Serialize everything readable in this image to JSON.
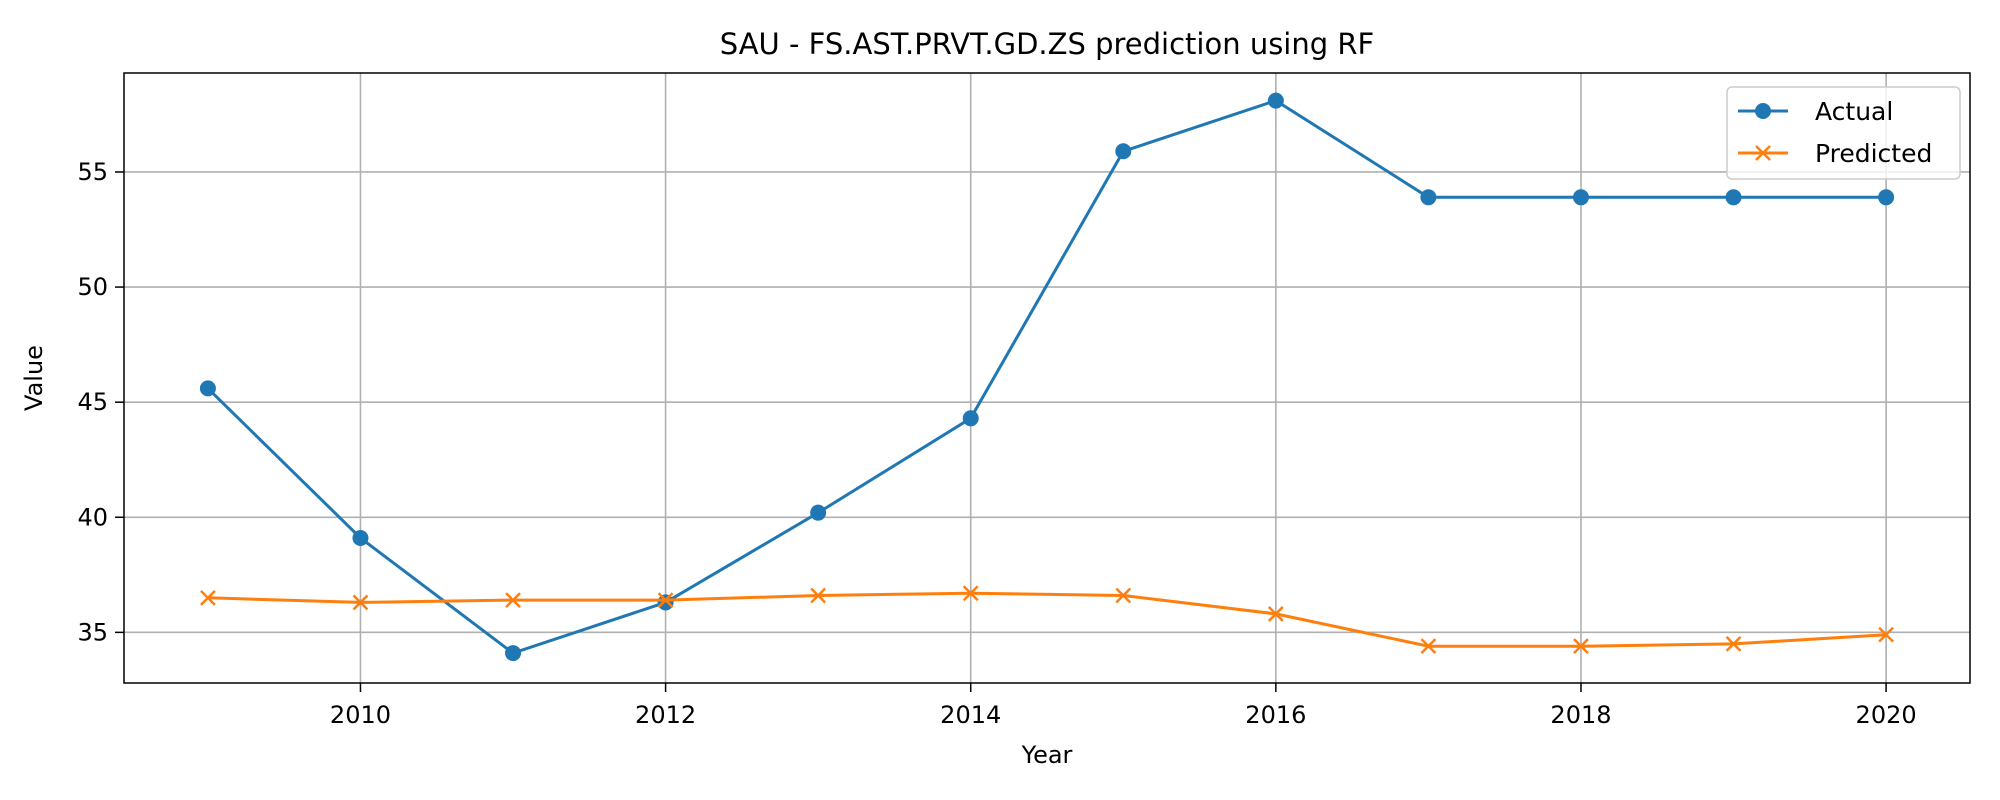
{
  "chart_data": {
    "type": "line",
    "title": "SAU - FS.AST.PRVT.GD.ZS prediction using RF",
    "xlabel": "Year",
    "ylabel": "Value",
    "xlim": [
      2008.45,
      2020.55
    ],
    "ylim": [
      32.8,
      59.3
    ],
    "xticks": [
      2010,
      2012,
      2014,
      2016,
      2018,
      2020
    ],
    "yticks": [
      35,
      40,
      45,
      50,
      55
    ],
    "grid": true,
    "legend_position": "top-right",
    "x": [
      2009,
      2010,
      2011,
      2012,
      2013,
      2014,
      2015,
      2016,
      2017,
      2018,
      2019,
      2020
    ],
    "series": [
      {
        "name": "Actual",
        "color": "#1f77b4",
        "marker": "circle",
        "values": [
          45.6,
          39.1,
          34.1,
          36.3,
          40.2,
          44.3,
          55.9,
          58.1,
          53.9,
          53.9,
          53.9,
          53.9
        ]
      },
      {
        "name": "Predicted",
        "color": "#ff7f0e",
        "marker": "x",
        "values": [
          36.5,
          36.3,
          36.4,
          36.4,
          36.6,
          36.7,
          36.6,
          35.8,
          34.4,
          34.4,
          34.5,
          34.9
        ]
      }
    ]
  }
}
